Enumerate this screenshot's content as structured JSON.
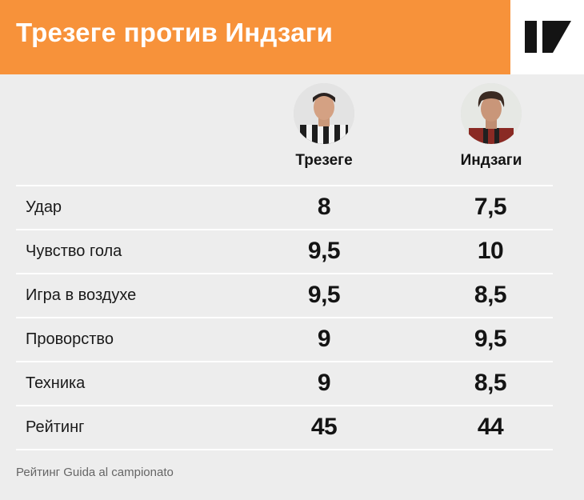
{
  "header": {
    "title": "Трезеге против Индзаги",
    "logo_icon": "publisher-logo-icon",
    "accent_color": "#f7923a"
  },
  "players": [
    {
      "name": "Трезеге",
      "photo_icon": "player-photo-trezeguet"
    },
    {
      "name": "Индзаги",
      "photo_icon": "player-photo-inzaghi"
    }
  ],
  "rows": [
    {
      "label": "Удар",
      "values": [
        "8",
        "7,5"
      ]
    },
    {
      "label": "Чувство гола",
      "values": [
        "9,5",
        "10"
      ]
    },
    {
      "label": "Игра в воздухе",
      "values": [
        "9,5",
        "8,5"
      ]
    },
    {
      "label": "Проворство",
      "values": [
        "9",
        "9,5"
      ]
    },
    {
      "label": "Техника",
      "values": [
        "9",
        "8,5"
      ]
    },
    {
      "label": "Рейтинг",
      "values": [
        "45",
        "44"
      ]
    }
  ],
  "footnote": "Рейтинг Guida al campionato"
}
